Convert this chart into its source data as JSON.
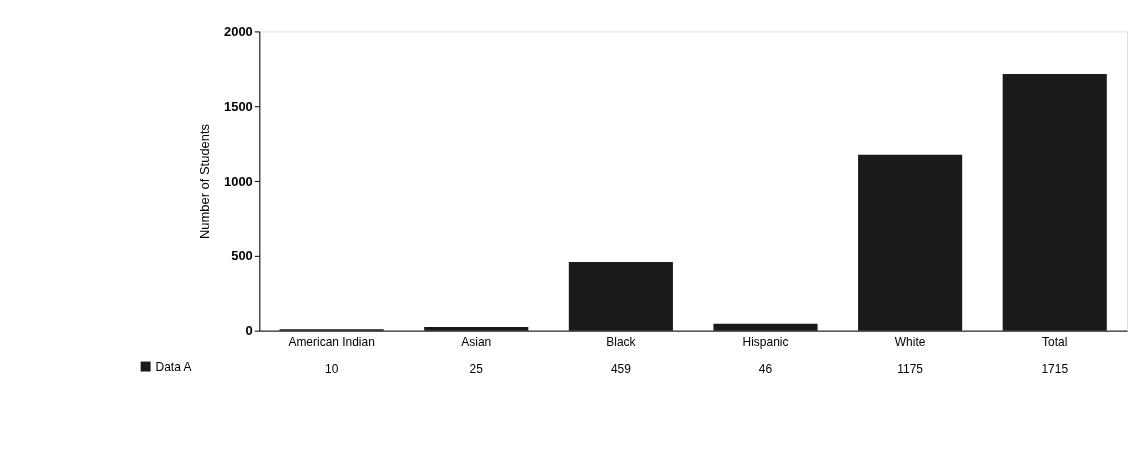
{
  "chart_data": {
    "type": "bar",
    "ylabel": "Number of Students",
    "categories": [
      "American Indian",
      "Asian",
      "Black",
      "Hispanic",
      "White",
      "Total"
    ],
    "series": [
      {
        "name": "Data A",
        "color": "#1a1a1a",
        "values": [
          10,
          25,
          459,
          46,
          1175,
          1715
        ]
      }
    ],
    "ylim": [
      0,
      2000
    ],
    "yticks": [
      0,
      500,
      1000,
      1500,
      2000
    ],
    "grid": false,
    "data_labels": true,
    "legend": "bottom left"
  }
}
